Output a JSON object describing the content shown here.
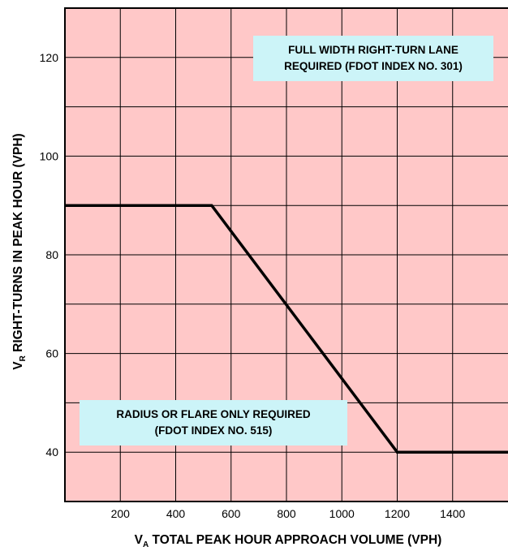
{
  "chart_data": {
    "type": "line",
    "title": "",
    "xlabel": {
      "main": "V",
      "sub": "A",
      "rest": " TOTAL PEAK HOUR APPROACH VOLUME (VPH)"
    },
    "ylabel": {
      "main": "V",
      "sub": "R",
      "rest": " RIGHT-TURNS IN PEAK HOUR (VPH)"
    },
    "xlim": [
      0,
      1600
    ],
    "ylim": [
      30,
      130
    ],
    "x_ticks": [
      200,
      400,
      600,
      800,
      1000,
      1200,
      1400
    ],
    "y_ticks": [
      40,
      60,
      80,
      100,
      120
    ],
    "x_gridlines": [
      200,
      400,
      600,
      800,
      1000,
      1200,
      1400
    ],
    "y_gridlines": [
      40,
      50,
      60,
      70,
      80,
      90,
      100,
      110,
      120
    ],
    "grid": true,
    "series": [
      {
        "x": [
          0,
          530,
          1200,
          1600
        ],
        "y": [
          90,
          90,
          40,
          40
        ]
      }
    ],
    "annotations": [
      {
        "lines": [
          "FULL WIDTH RIGHT-TURN LANE",
          "REQUIRED (FDOT INDEX NO. 301)"
        ]
      },
      {
        "lines": [
          "RADIUS OR FLARE ONLY REQUIRED",
          "(FDOT INDEX NO. 515)"
        ]
      }
    ],
    "colors": {
      "background": "#ffc8c8",
      "grid": "#000000",
      "line": "#000000",
      "annotation_box": "#ccf4f8"
    }
  }
}
